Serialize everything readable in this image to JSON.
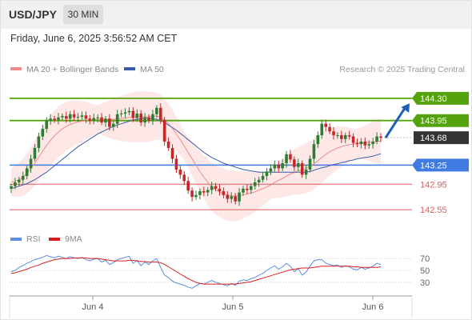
{
  "header": {
    "symbol": "USD/JPY",
    "timeframe": "30 MIN",
    "datetime": "Friday, June 6, 2025 3:56:52 AM CET"
  },
  "attribution": "Research © 2025 Trading Central",
  "colors": {
    "resistance": "#54a30c",
    "pivot": "#3f7be0",
    "support": "#e05b5b",
    "current": "#333333",
    "arrow": "#1f5fb5",
    "band": "#fde4e4",
    "ma20": "#f08a8a",
    "ma50": "#3b5ca8",
    "candle_up": "#2e7d32",
    "candle_down": "#c62828",
    "rsi": "#5b8de0",
    "rsi_ma": "#d62020"
  },
  "chart_data": [
    {
      "type": "candlestick",
      "title": "USD/JPY",
      "legend": [
        {
          "name": "MA 20 + Bollinger Bands",
          "color": "#f08a8a"
        },
        {
          "name": "MA 50",
          "color": "#3b5ca8"
        }
      ],
      "x_ticks": [
        "Jun 4",
        "Jun 5",
        "Jun 6"
      ],
      "ylim": [
        142.3,
        144.65
      ],
      "levels": [
        {
          "label": "144.30",
          "value": 144.3,
          "kind": "resistance"
        },
        {
          "label": "143.95",
          "value": 143.95,
          "kind": "resistance"
        },
        {
          "label": "143.68",
          "value": 143.68,
          "kind": "current"
        },
        {
          "label": "143.25",
          "value": 143.25,
          "kind": "pivot"
        },
        {
          "label": "142.95",
          "value": 142.95,
          "kind": "support"
        },
        {
          "label": "142.55",
          "value": 142.55,
          "kind": "support"
        }
      ],
      "close": [
        142.92,
        142.98,
        143.02,
        143.08,
        143.2,
        143.35,
        143.52,
        143.7,
        143.82,
        143.95,
        143.98,
        143.96,
        144.0,
        144.02,
        143.98,
        144.05,
        144.0,
        144.01,
        144.03,
        143.98,
        143.95,
        143.99,
        144.0,
        143.92,
        143.98,
        143.85,
        143.9,
        144.05,
        144.06,
        144.08,
        144.1,
        143.99,
        144.06,
        143.92,
        144.0,
        143.95,
        144.05,
        144.15,
        143.96,
        143.62,
        143.52,
        143.35,
        143.18,
        143.1,
        143.0,
        142.85,
        142.75,
        142.78,
        142.84,
        142.82,
        142.86,
        142.92,
        142.88,
        142.84,
        142.78,
        142.72,
        142.76,
        142.68,
        142.82,
        142.88,
        142.86,
        142.92,
        142.98,
        143.02,
        143.08,
        143.15,
        143.2,
        143.26,
        143.2,
        143.28,
        143.42,
        143.34,
        143.22,
        143.28,
        143.1,
        143.18,
        143.35,
        143.58,
        143.72,
        143.9,
        143.85,
        143.78,
        143.72,
        143.72,
        143.66,
        143.72,
        143.7,
        143.6,
        143.58,
        143.62,
        143.56,
        143.58,
        143.62,
        143.7,
        143.68
      ],
      "ma20": [
        142.98,
        143.0,
        143.02,
        143.06,
        143.12,
        143.2,
        143.28,
        143.38,
        143.47,
        143.56,
        143.64,
        143.71,
        143.77,
        143.82,
        143.86,
        143.89,
        143.91,
        143.93,
        143.94,
        143.95,
        143.96,
        143.96,
        143.97,
        143.97,
        143.97,
        143.97,
        143.97,
        143.98,
        143.98,
        143.99,
        144.0,
        144.0,
        144.01,
        144.01,
        144.01,
        144.01,
        144.02,
        144.02,
        144.0,
        143.96,
        143.9,
        143.83,
        143.74,
        143.65,
        143.55,
        143.45,
        143.35,
        143.25,
        143.15,
        143.06,
        142.98,
        142.91,
        142.86,
        142.83,
        142.8,
        142.78,
        142.77,
        142.76,
        142.77,
        142.78,
        142.8,
        142.81,
        142.83,
        142.86,
        142.88,
        142.91,
        142.94,
        142.98,
        143.01,
        143.04,
        143.08,
        143.11,
        143.14,
        143.16,
        143.18,
        143.2,
        143.23,
        143.27,
        143.32,
        143.37,
        143.42,
        143.46,
        143.49,
        143.52,
        143.54,
        143.56,
        143.57,
        143.58,
        143.59,
        143.6,
        143.6,
        143.61,
        143.61,
        143.62,
        143.63
      ],
      "ma50": [
        142.88,
        142.9,
        142.92,
        142.94,
        142.96,
        142.99,
        143.02,
        143.06,
        143.1,
        143.14,
        143.19,
        143.24,
        143.29,
        143.34,
        143.39,
        143.44,
        143.49,
        143.54,
        143.58,
        143.62,
        143.66,
        143.7,
        143.74,
        143.77,
        143.8,
        143.83,
        143.86,
        143.88,
        143.9,
        143.92,
        143.94,
        143.96,
        143.97,
        143.98,
        143.99,
        143.99,
        143.98,
        143.97,
        143.95,
        143.92,
        143.88,
        143.84,
        143.8,
        143.75,
        143.7,
        143.65,
        143.6,
        143.55,
        143.5,
        143.45,
        143.41,
        143.37,
        143.34,
        143.31,
        143.28,
        143.26,
        143.24,
        143.22,
        143.2,
        143.18,
        143.17,
        143.16,
        143.15,
        143.14,
        143.14,
        143.14,
        143.14,
        143.14,
        143.14,
        143.14,
        143.14,
        143.14,
        143.14,
        143.14,
        143.14,
        143.14,
        143.15,
        143.17,
        143.19,
        143.21,
        143.22,
        143.24,
        143.26,
        143.27,
        143.29,
        143.3,
        143.32,
        143.33,
        143.35,
        143.36,
        143.37,
        143.38,
        143.39,
        143.41,
        143.43
      ],
      "forecast_arrow": {
        "from": 143.68,
        "to": 144.22
      }
    },
    {
      "type": "line",
      "title": "RSI",
      "legend": [
        {
          "name": "RSI",
          "color": "#5b8de0"
        },
        {
          "name": "9MA",
          "color": "#d62020"
        }
      ],
      "y_ticks": [
        "70",
        "50",
        "30"
      ],
      "ylim": [
        15,
        85
      ],
      "series": [
        {
          "name": "RSI",
          "values": [
            48,
            50,
            55,
            58,
            62,
            65,
            68,
            70,
            72,
            75,
            73,
            71,
            74,
            72,
            70,
            73,
            71,
            70,
            72,
            68,
            66,
            69,
            70,
            64,
            67,
            60,
            63,
            68,
            70,
            72,
            74,
            62,
            67,
            58,
            64,
            60,
            66,
            70,
            55,
            42,
            38,
            32,
            29,
            27,
            25,
            22,
            20,
            24,
            28,
            27,
            30,
            33,
            30,
            28,
            26,
            24,
            28,
            25,
            32,
            34,
            33,
            36,
            38,
            42,
            45,
            50,
            54,
            58,
            52,
            56,
            62,
            57,
            48,
            53,
            42,
            47,
            57,
            66,
            68,
            68,
            62,
            60,
            58,
            59,
            55,
            58,
            56,
            52,
            51,
            55,
            52,
            54,
            57,
            62,
            60
          ]
        },
        {
          "name": "9MA",
          "values": [
            45,
            46,
            48,
            50,
            52,
            55,
            57,
            59,
            62,
            64,
            66,
            68,
            69,
            70,
            70,
            70,
            71,
            71,
            71,
            71,
            70,
            70,
            70,
            69,
            68,
            67,
            66,
            66,
            66,
            66,
            67,
            67,
            66,
            65,
            65,
            64,
            64,
            64,
            63,
            60,
            56,
            52,
            48,
            44,
            40,
            36,
            33,
            30,
            28,
            27,
            27,
            27,
            27,
            27,
            27,
            27,
            27,
            27,
            28,
            29,
            30,
            31,
            33,
            35,
            37,
            39,
            41,
            43,
            45,
            47,
            49,
            51,
            52,
            53,
            54,
            54,
            54,
            55,
            56,
            57,
            57,
            57,
            57,
            57,
            57,
            57,
            57,
            56,
            56,
            55,
            55,
            55,
            55,
            55,
            56
          ]
        }
      ]
    }
  ]
}
